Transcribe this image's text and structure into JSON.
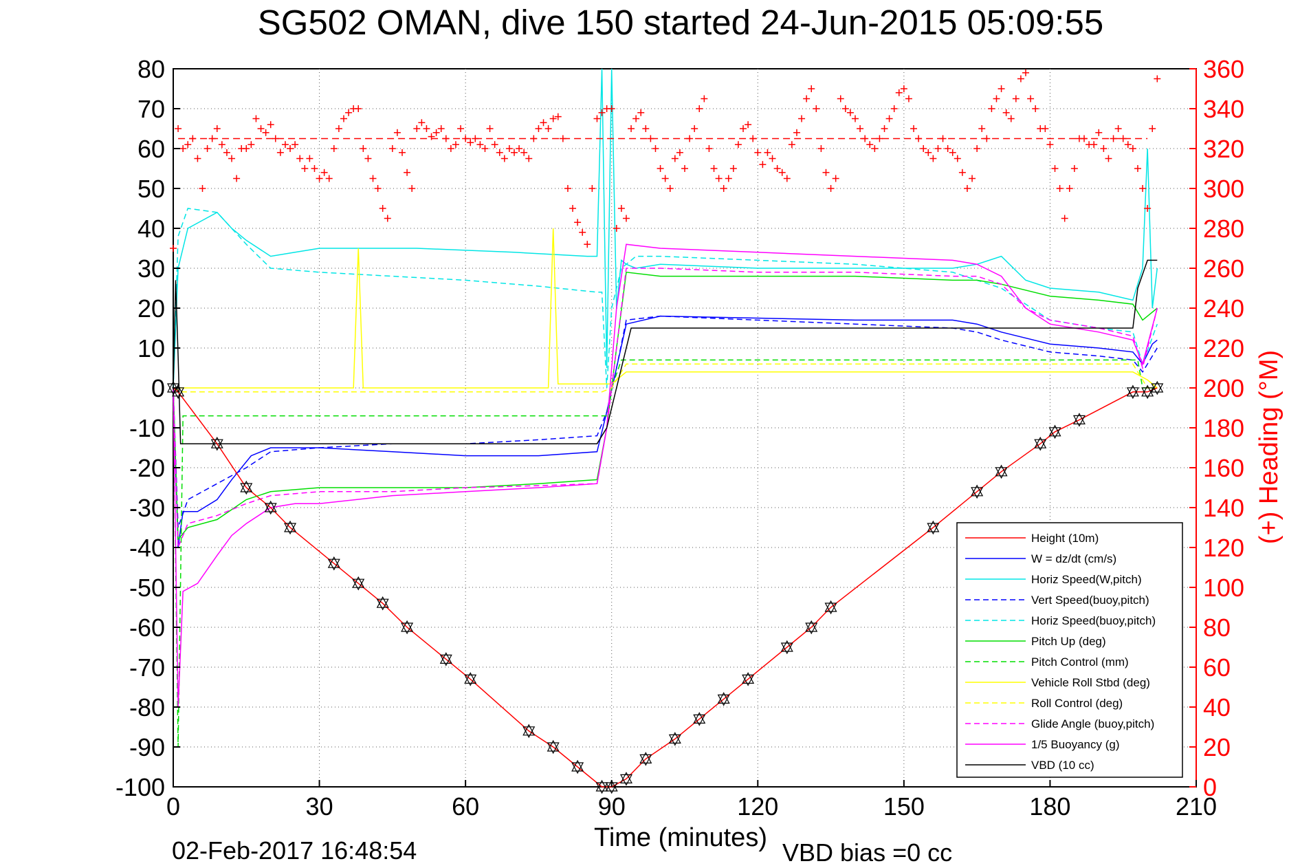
{
  "chart_data": {
    "type": "line",
    "title": "SG502 OMAN, dive 150 started 24-Jun-2015 05:09:55",
    "xlabel": "Time (minutes)",
    "ylabel_right": "(+) Heading (°M)",
    "footer_left": "02-Feb-2017 16:48:54",
    "footer_right": "VBD bias =0 cc",
    "xlim": [
      0,
      210
    ],
    "ylim": [
      -100,
      80
    ],
    "y2lim": [
      0,
      360
    ],
    "x_ticks": [
      "0",
      "30",
      "60",
      "90",
      "120",
      "150",
      "180",
      "210"
    ],
    "y_ticks": [
      "80",
      "70",
      "60",
      "50",
      "40",
      "30",
      "20",
      "10",
      "0",
      "-10",
      "-20",
      "-30",
      "-40",
      "-50",
      "-60",
      "-70",
      "-80",
      "-90",
      "-100"
    ],
    "y2_ticks": [
      "360",
      "340",
      "320",
      "300",
      "280",
      "260",
      "240",
      "220",
      "200",
      "180",
      "160",
      "140",
      "120",
      "100",
      "80",
      "60",
      "40",
      "20",
      "0"
    ],
    "grid": true,
    "legend_position": "bottom-right",
    "colors": {
      "height": "#ff0000",
      "w": "#0000ff",
      "horiz_speed": "#00e5e5",
      "pitch": "#00dd00",
      "roll": "#ffff00",
      "buoyancy": "#ff00ff",
      "vbd": "#000000",
      "heading": "#ff0000"
    },
    "series": [
      {
        "name": "Height (10m)",
        "color": "#ff0000",
        "style": "solid",
        "x": [
          0,
          1,
          9,
          15,
          20,
          24,
          33,
          38,
          43,
          48,
          56,
          61,
          73,
          78,
          83,
          88,
          90,
          93,
          97,
          103,
          108,
          113,
          118,
          126,
          131,
          135,
          156,
          165,
          170,
          178,
          181,
          186,
          197,
          200,
          202
        ],
        "y": [
          0,
          -1,
          -14,
          -25,
          -30,
          -35,
          -44,
          -49,
          -54,
          -60,
          -68,
          -73,
          -86,
          -90,
          -95,
          -100,
          -100,
          -98,
          -93,
          -88,
          -83,
          -78,
          -73,
          -65,
          -60,
          -55,
          -35,
          -26,
          -21,
          -14,
          -11,
          -8,
          -1,
          -1,
          0
        ]
      },
      {
        "name": "W = dz/dt (cm/s)",
        "color": "#0000ff",
        "style": "solid",
        "x": [
          0,
          1,
          2,
          5,
          9,
          12,
          16,
          20,
          30,
          45,
          60,
          75,
          87,
          89,
          91,
          93,
          100,
          120,
          140,
          160,
          165,
          170,
          180,
          190,
          197,
          199,
          201,
          202
        ],
        "y": [
          0,
          -40,
          -31,
          -31,
          -28,
          -23,
          -17,
          -15,
          -15,
          -16,
          -17,
          -17,
          -16,
          -6,
          5,
          16,
          18,
          17.5,
          17,
          17,
          16,
          14,
          11,
          10,
          9,
          6,
          11,
          12
        ]
      },
      {
        "name": "Horiz Speed(W,pitch)",
        "color": "#00e5e5",
        "style": "solid",
        "x": [
          0,
          1,
          3,
          6,
          9,
          12,
          15,
          20,
          25,
          30,
          50,
          70,
          85,
          87,
          88,
          89,
          90,
          91,
          92,
          93,
          95,
          100,
          120,
          140,
          160,
          165,
          170,
          175,
          180,
          190,
          197,
          199,
          200,
          201,
          202
        ],
        "y": [
          0,
          30,
          40,
          42,
          44,
          40,
          37,
          33,
          34,
          35,
          35,
          34,
          33,
          33,
          80,
          5,
          80,
          20,
          32,
          31,
          30,
          31,
          30,
          30,
          30,
          31,
          33,
          27,
          25,
          24,
          22,
          30,
          60,
          20,
          30
        ]
      },
      {
        "name": "Vert Speed(buoy,pitch)",
        "color": "#0000ff",
        "style": "dashed",
        "x": [
          0,
          1,
          3,
          9,
          15,
          20,
          30,
          45,
          60,
          75,
          87,
          89,
          91,
          93,
          100,
          120,
          140,
          160,
          165,
          170,
          180,
          190,
          197,
          199,
          202
        ],
        "y": [
          0,
          -35,
          -28,
          -24,
          -20,
          -16,
          -15,
          -14,
          -14,
          -13,
          -12,
          -6,
          5,
          17,
          18,
          17,
          16,
          15,
          14,
          12,
          9,
          8,
          7,
          4,
          10
        ]
      },
      {
        "name": "Horiz Speed(buoy,pitch)",
        "color": "#00e5e5",
        "style": "dashed",
        "x": [
          0,
          1,
          3,
          9,
          15,
          20,
          30,
          45,
          60,
          75,
          87,
          88,
          89,
          90,
          92,
          95,
          100,
          120,
          140,
          160,
          165,
          170,
          175,
          180,
          190,
          197,
          199,
          202
        ],
        "y": [
          0,
          38,
          45,
          44,
          36,
          30,
          29,
          28,
          27,
          25.5,
          24,
          24,
          0,
          20,
          30,
          33,
          33,
          32,
          31,
          29,
          27,
          25,
          21,
          17,
          15,
          14,
          6,
          16
        ]
      },
      {
        "name": "Pitch Up (deg)",
        "color": "#00dd00",
        "style": "solid",
        "x": [
          0,
          1,
          3,
          9,
          15,
          20,
          30,
          45,
          60,
          75,
          87,
          89,
          91,
          93,
          100,
          120,
          140,
          160,
          165,
          170,
          180,
          190,
          197,
          199,
          202
        ],
        "y": [
          0,
          -38,
          -35,
          -33,
          -28,
          -26,
          -25,
          -25,
          -25,
          -24,
          -23,
          -10,
          10,
          29,
          28,
          28,
          28,
          27,
          27,
          26,
          23,
          22,
          21,
          17,
          20
        ]
      },
      {
        "name": "Pitch Control (mm)",
        "color": "#00dd00",
        "style": "dashed",
        "x": [
          0,
          1,
          2,
          3,
          88,
          89,
          90,
          92,
          93,
          197,
          198,
          199,
          202
        ],
        "y": [
          0,
          -90,
          -7,
          -7,
          -7,
          -7,
          0,
          7,
          7,
          7,
          7,
          0,
          0
        ]
      },
      {
        "name": "Vehicle Roll Stbd (deg)",
        "color": "#ffff00",
        "style": "solid",
        "x": [
          0,
          2,
          30,
          37,
          38,
          39,
          60,
          77,
          78,
          79,
          88,
          90,
          93,
          100,
          120,
          140,
          160,
          170,
          180,
          190,
          197,
          200,
          202
        ],
        "y": [
          0,
          0,
          0,
          0,
          35,
          0,
          0,
          0,
          40,
          1,
          1,
          1,
          4,
          4,
          4,
          4,
          4,
          4,
          4,
          4,
          4,
          2,
          0
        ]
      },
      {
        "name": "Roll Control (deg)",
        "color": "#ffff00",
        "style": "dashed",
        "x": [
          0,
          2,
          88,
          90,
          93,
          197,
          200,
          202
        ],
        "y": [
          0,
          -1,
          -1,
          0,
          6,
          6,
          0,
          0
        ]
      },
      {
        "name": "Glide Angle (buoy,pitch)",
        "color": "#ff00ff",
        "style": "dashed",
        "x": [
          0,
          1,
          3,
          9,
          15,
          20,
          30,
          45,
          60,
          75,
          87,
          89,
          91,
          93,
          100,
          120,
          140,
          160,
          165,
          170,
          175,
          180,
          190,
          197,
          199,
          202
        ],
        "y": [
          0,
          -40,
          -34,
          -32,
          -29,
          -27,
          -26,
          -26,
          -25,
          -24.5,
          -24,
          -10,
          10,
          30,
          30,
          29,
          29,
          28,
          28,
          26,
          20,
          17,
          15,
          13,
          5,
          20
        ]
      },
      {
        "name": "1/5 Buoyancy (g)",
        "color": "#ff00ff",
        "style": "solid",
        "x": [
          0,
          1,
          2,
          5,
          9,
          12,
          15,
          20,
          25,
          30,
          45,
          60,
          75,
          87,
          89,
          91,
          93,
          100,
          120,
          140,
          160,
          165,
          170,
          175,
          180,
          190,
          197,
          199,
          202
        ],
        "y": [
          0,
          -80,
          -51,
          -49,
          -42,
          -37,
          -34,
          -30,
          -29,
          -29,
          -27,
          -26,
          -25,
          -24,
          -10,
          20,
          36,
          35,
          34,
          33,
          32,
          31,
          28,
          20,
          16,
          14,
          12,
          6,
          20
        ]
      },
      {
        "name": "VBD (10 cc)",
        "color": "#000000",
        "style": "solid",
        "x": [
          0,
          0.5,
          1,
          1.5,
          87,
          89,
          91,
          94,
          196,
          197,
          198,
          200,
          202
        ],
        "y": [
          0,
          27,
          8,
          -14,
          -14,
          -10,
          0,
          15,
          15,
          15,
          25,
          32,
          32
        ]
      }
    ],
    "heading": {
      "name": "(+) Heading (°M)",
      "axis": "right",
      "color": "#ff0000",
      "marker": "+",
      "reference_line": 325,
      "x": [
        0,
        1,
        2,
        3,
        4,
        5,
        6,
        7,
        8,
        9,
        10,
        11,
        12,
        13,
        14,
        15,
        16,
        17,
        18,
        19,
        20,
        21,
        22,
        23,
        24,
        25,
        26,
        27,
        28,
        29,
        30,
        31,
        32,
        33,
        34,
        35,
        36,
        37,
        38,
        39,
        40,
        41,
        42,
        43,
        44,
        45,
        46,
        47,
        48,
        49,
        50,
        51,
        52,
        53,
        54,
        55,
        56,
        57,
        58,
        59,
        60,
        61,
        62,
        63,
        64,
        65,
        66,
        67,
        68,
        69,
        70,
        71,
        72,
        73,
        74,
        75,
        76,
        77,
        78,
        79,
        80,
        81,
        82,
        83,
        84,
        85,
        86,
        87,
        88,
        89,
        90,
        91,
        92,
        93,
        94,
        95,
        96,
        97,
        98,
        99,
        100,
        101,
        102,
        103,
        104,
        105,
        106,
        107,
        108,
        109,
        110,
        111,
        112,
        113,
        114,
        115,
        116,
        117,
        118,
        119,
        120,
        121,
        122,
        123,
        124,
        125,
        126,
        127,
        128,
        129,
        130,
        131,
        132,
        133,
        134,
        135,
        136,
        137,
        138,
        139,
        140,
        141,
        142,
        143,
        144,
        145,
        146,
        147,
        148,
        149,
        150,
        151,
        152,
        153,
        154,
        155,
        156,
        157,
        158,
        159,
        160,
        161,
        162,
        163,
        164,
        165,
        166,
        167,
        168,
        169,
        170,
        171,
        172,
        173,
        174,
        175,
        176,
        177,
        178,
        179,
        180,
        181,
        182,
        183,
        184,
        185,
        186,
        187,
        188,
        189,
        190,
        191,
        192,
        193,
        194,
        195,
        196,
        197,
        198,
        199,
        200,
        201,
        202
      ],
      "y": [
        270,
        330,
        320,
        322,
        325,
        315,
        300,
        320,
        325,
        330,
        322,
        318,
        315,
        305,
        320,
        320,
        322,
        335,
        330,
        328,
        332,
        325,
        318,
        322,
        320,
        322,
        315,
        310,
        315,
        310,
        305,
        308,
        305,
        320,
        330,
        335,
        338,
        340,
        340,
        320,
        315,
        305,
        300,
        290,
        285,
        320,
        328,
        318,
        308,
        300,
        330,
        333,
        330,
        326,
        328,
        330,
        325,
        320,
        322,
        330,
        325,
        323,
        325,
        322,
        320,
        330,
        322,
        318,
        315,
        320,
        318,
        320,
        318,
        315,
        325,
        330,
        333,
        330,
        335,
        336,
        325,
        300,
        290,
        283,
        278,
        272,
        300,
        335,
        338,
        340,
        340,
        280,
        290,
        285,
        330,
        335,
        338,
        330,
        325,
        320,
        310,
        305,
        300,
        315,
        318,
        310,
        325,
        330,
        340,
        345,
        320,
        310,
        305,
        300,
        305,
        310,
        322,
        330,
        332,
        325,
        318,
        312,
        318,
        315,
        310,
        308,
        305,
        322,
        328,
        335,
        345,
        350,
        340,
        320,
        308,
        300,
        305,
        345,
        340,
        338,
        335,
        330,
        325,
        322,
        320,
        325,
        330,
        335,
        340,
        348,
        350,
        345,
        330,
        325,
        320,
        318,
        315,
        320,
        325,
        320,
        318,
        315,
        308,
        300,
        305,
        320,
        330,
        325,
        340,
        345,
        350,
        338,
        335,
        345,
        355,
        358,
        345,
        340,
        330,
        330,
        322,
        310,
        300,
        285,
        300,
        310,
        325,
        325,
        322,
        322,
        328,
        320,
        315,
        325,
        330,
        325,
        322,
        320,
        310,
        300,
        290,
        330,
        355
      ]
    }
  }
}
